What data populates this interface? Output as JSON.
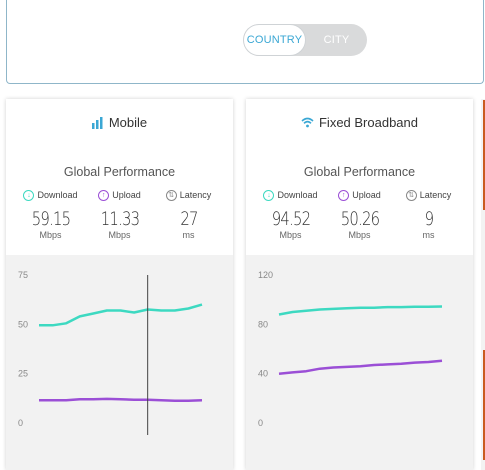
{
  "toggle": {
    "country_label": "COUNTRY",
    "city_label": "CITY",
    "selected": "COUNTRY"
  },
  "colors": {
    "download": "#3dd9c1",
    "upload": "#9b4fd6",
    "latency": "#888888",
    "accent": "#3aa7d4"
  },
  "cards": [
    {
      "title": "Mobile",
      "icon": "signal-bars-icon",
      "subtitle": "Global Performance",
      "download_label": "Download",
      "upload_label": "Upload",
      "latency_label": "Latency",
      "download_value": "59.15",
      "download_unit": "Mbps",
      "upload_value": "11.33",
      "upload_unit": "Mbps",
      "latency_value": "27",
      "latency_unit": "ms"
    },
    {
      "title": "Fixed Broadband",
      "icon": "wifi-icon",
      "subtitle": "Global Performance",
      "download_label": "Download",
      "upload_label": "Upload",
      "latency_label": "Latency",
      "download_value": "94.52",
      "download_unit": "Mbps",
      "upload_value": "50.26",
      "upload_unit": "Mbps",
      "latency_value": "9",
      "latency_unit": "ms"
    }
  ],
  "chart_data": [
    {
      "type": "line",
      "ylim": [
        0,
        75
      ],
      "yticks": [
        "75",
        "50",
        "25",
        "0"
      ],
      "series": [
        {
          "values": [
            49.5,
            49.5,
            50.5,
            54,
            55.5,
            57,
            57,
            56,
            57.5,
            57,
            57,
            58,
            60
          ]
        },
        {
          "values": [
            11.5,
            11.5,
            11.5,
            12,
            12,
            12.2,
            12,
            11.8,
            11.8,
            11.5,
            11.3,
            11.3,
            11.5
          ]
        }
      ],
      "cursor_index": 8
    },
    {
      "type": "line",
      "ylim": [
        0,
        120
      ],
      "yticks": [
        "120",
        "80",
        "40",
        "0"
      ],
      "series": [
        {
          "values": [
            88,
            90,
            91,
            92,
            92.5,
            93,
            93.5,
            93.5,
            94,
            94,
            94.2,
            94.3,
            94.5
          ]
        },
        {
          "values": [
            40,
            41,
            42,
            44,
            45,
            45.5,
            46,
            47,
            47.5,
            48,
            49,
            49.5,
            50.5
          ]
        }
      ],
      "cursor_index": -1
    }
  ]
}
